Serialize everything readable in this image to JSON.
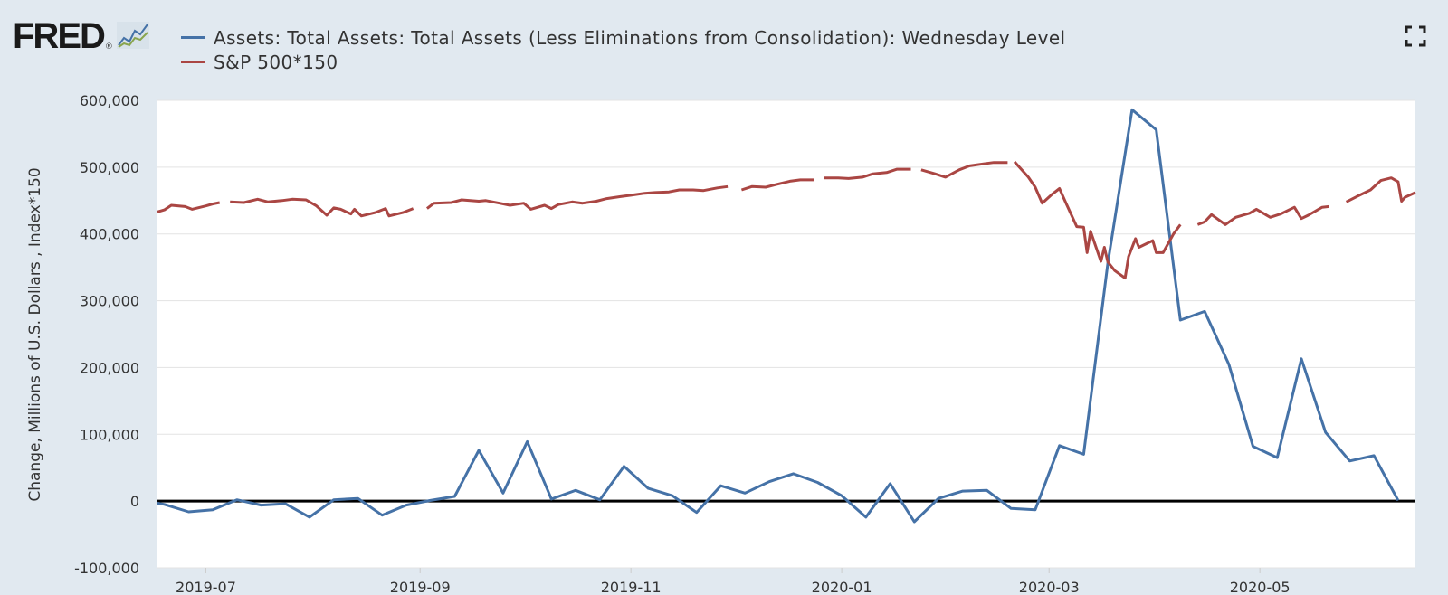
{
  "logo": {
    "text": "FRED",
    "registered": "®"
  },
  "chart_data": {
    "type": "line",
    "title": "",
    "xlabel": "",
    "ylabel": "Change, Millions of U.S. Dollars , Index*150",
    "ylim": [
      -100000,
      600000
    ],
    "y_ticks": [
      -100000,
      0,
      100000,
      200000,
      300000,
      400000,
      500000,
      600000
    ],
    "y_tick_labels": [
      "-100,000",
      "0",
      "100,000",
      "200,000",
      "300,000",
      "400,000",
      "500,000",
      "600,000"
    ],
    "xlim": [
      "2019-06-17",
      "2020-06-15"
    ],
    "x_ticks": [
      "2019-07-01",
      "2019-09-01",
      "2019-11-01",
      "2020-01-01",
      "2020-03-01",
      "2020-05-01"
    ],
    "x_tick_labels": [
      "2019-07",
      "2019-09",
      "2019-11",
      "2020-01",
      "2020-03",
      "2020-05"
    ],
    "grid": true,
    "legend_placement": "top-left",
    "zero_line": true,
    "series": [
      {
        "name": "Assets: Total Assets: Total Assets (Less Eliminations from Consolidation): Wednesday Level",
        "color": "#4572a7",
        "points": [
          [
            "2019-06-17",
            -3000
          ],
          [
            "2019-06-19",
            -5000
          ],
          [
            "2019-06-26",
            -16000
          ],
          [
            "2019-07-03",
            -13000
          ],
          [
            "2019-07-10",
            2000
          ],
          [
            "2019-07-17",
            -6000
          ],
          [
            "2019-07-24",
            -4000
          ],
          [
            "2019-07-31",
            -24000
          ],
          [
            "2019-08-07",
            2000
          ],
          [
            "2019-08-14",
            4000
          ],
          [
            "2019-08-21",
            -21000
          ],
          [
            "2019-08-28",
            -6000
          ],
          [
            "2019-09-04",
            1000
          ],
          [
            "2019-09-11",
            7000
          ],
          [
            "2019-09-18",
            76000
          ],
          [
            "2019-09-25",
            12000
          ],
          [
            "2019-10-02",
            89000
          ],
          [
            "2019-10-09",
            3000
          ],
          [
            "2019-10-16",
            16000
          ],
          [
            "2019-10-23",
            2000
          ],
          [
            "2019-10-30",
            52000
          ],
          [
            "2019-11-06",
            19000
          ],
          [
            "2019-11-13",
            8000
          ],
          [
            "2019-11-20",
            -17000
          ],
          [
            "2019-11-27",
            23000
          ],
          [
            "2019-12-04",
            12000
          ],
          [
            "2019-12-11",
            29000
          ],
          [
            "2019-12-18",
            41000
          ],
          [
            "2019-12-25",
            28000
          ],
          [
            "2020-01-01",
            8000
          ],
          [
            "2020-01-08",
            -24000
          ],
          [
            "2020-01-15",
            26000
          ],
          [
            "2020-01-22",
            -31000
          ],
          [
            "2020-01-29",
            4000
          ],
          [
            "2020-02-05",
            15000
          ],
          [
            "2020-02-12",
            16000
          ],
          [
            "2020-02-19",
            -11000
          ],
          [
            "2020-02-26",
            -13000
          ],
          [
            "2020-03-04",
            83000
          ],
          [
            "2020-03-11",
            70000
          ],
          [
            "2020-03-18",
            356000
          ],
          [
            "2020-03-25",
            586000
          ],
          [
            "2020-04-01",
            556000
          ],
          [
            "2020-04-08",
            271000
          ],
          [
            "2020-04-15",
            284000
          ],
          [
            "2020-04-22",
            205000
          ],
          [
            "2020-04-29",
            82000
          ],
          [
            "2020-05-06",
            65000
          ],
          [
            "2020-05-13",
            213000
          ],
          [
            "2020-05-20",
            103000
          ],
          [
            "2020-05-27",
            60000
          ],
          [
            "2020-06-03",
            68000
          ],
          [
            "2020-06-10",
            1000
          ]
        ]
      },
      {
        "name": "S&P 500*150",
        "color": "#aa4643",
        "segments": [
          [
            [
              "2019-06-17",
              433000
            ],
            [
              "2019-06-19",
              436000
            ],
            [
              "2019-06-21",
              443000
            ],
            [
              "2019-06-25",
              441000
            ],
            [
              "2019-06-27",
              437000
            ],
            [
              "2019-07-01",
              442000
            ],
            [
              "2019-07-03",
              445000
            ],
            [
              "2019-07-05",
              447000
            ]
          ],
          [
            [
              "2019-07-08",
              448000
            ],
            [
              "2019-07-12",
              447000
            ],
            [
              "2019-07-16",
              452000
            ],
            [
              "2019-07-19",
              448000
            ],
            [
              "2019-07-23",
              450000
            ],
            [
              "2019-07-26",
              452000
            ],
            [
              "2019-07-30",
              451000
            ],
            [
              "2019-08-02",
              442000
            ],
            [
              "2019-08-05",
              428000
            ],
            [
              "2019-08-07",
              439000
            ],
            [
              "2019-08-09",
              437000
            ],
            [
              "2019-08-12",
              430000
            ],
            [
              "2019-08-13",
              437000
            ],
            [
              "2019-08-15",
              427000
            ],
            [
              "2019-08-19",
              432000
            ],
            [
              "2019-08-22",
              438000
            ],
            [
              "2019-08-23",
              427000
            ],
            [
              "2019-08-27",
              432000
            ],
            [
              "2019-08-30",
              438000
            ]
          ],
          [
            [
              "2019-09-03",
              438000
            ],
            [
              "2019-09-05",
              446000
            ],
            [
              "2019-09-10",
              447000
            ],
            [
              "2019-09-13",
              451000
            ],
            [
              "2019-09-18",
              449000
            ],
            [
              "2019-09-20",
              450000
            ],
            [
              "2019-09-24",
              446000
            ],
            [
              "2019-09-27",
              443000
            ],
            [
              "2019-10-01",
              446000
            ],
            [
              "2019-10-03",
              437000
            ],
            [
              "2019-10-07",
              443000
            ],
            [
              "2019-10-09",
              438000
            ],
            [
              "2019-10-11",
              444000
            ],
            [
              "2019-10-15",
              448000
            ],
            [
              "2019-10-18",
              446000
            ],
            [
              "2019-10-22",
              449000
            ],
            [
              "2019-10-25",
              453000
            ],
            [
              "2019-10-29",
              456000
            ],
            [
              "2019-11-01",
              458000
            ],
            [
              "2019-11-05",
              461000
            ],
            [
              "2019-11-08",
              462000
            ],
            [
              "2019-11-12",
              463000
            ],
            [
              "2019-11-15",
              466000
            ],
            [
              "2019-11-19",
              466000
            ],
            [
              "2019-11-22",
              465000
            ],
            [
              "2019-11-26",
              469000
            ],
            [
              "2019-11-29",
              471000
            ]
          ],
          [
            [
              "2019-12-03",
              466000
            ],
            [
              "2019-12-06",
              471000
            ],
            [
              "2019-12-10",
              470000
            ],
            [
              "2019-12-13",
              474000
            ],
            [
              "2019-12-17",
              479000
            ],
            [
              "2019-12-20",
              481000
            ],
            [
              "2019-12-24",
              481000
            ]
          ],
          [
            [
              "2019-12-27",
              484000
            ],
            [
              "2019-12-31",
              484000
            ],
            [
              "2020-01-03",
              483000
            ],
            [
              "2020-01-07",
              485000
            ],
            [
              "2020-01-10",
              490000
            ],
            [
              "2020-01-14",
              492000
            ],
            [
              "2020-01-17",
              497000
            ],
            [
              "2020-01-21",
              497000
            ]
          ],
          [
            [
              "2020-01-24",
              496000
            ],
            [
              "2020-01-28",
              490000
            ],
            [
              "2020-01-31",
              485000
            ],
            [
              "2020-02-04",
              496000
            ],
            [
              "2020-02-07",
              502000
            ],
            [
              "2020-02-11",
              505000
            ],
            [
              "2020-02-14",
              507000
            ],
            [
              "2020-02-18",
              507000
            ]
          ],
          [
            [
              "2020-02-20",
              508000
            ],
            [
              "2020-02-24",
              485000
            ],
            [
              "2020-02-26",
              470000
            ],
            [
              "2020-02-28",
              446000
            ],
            [
              "2020-03-02",
              460000
            ],
            [
              "2020-03-04",
              468000
            ],
            [
              "2020-03-06",
              445000
            ],
            [
              "2020-03-09",
              411000
            ],
            [
              "2020-03-11",
              410000
            ],
            [
              "2020-03-12",
              372000
            ],
            [
              "2020-03-13",
              404000
            ],
            [
              "2020-03-16",
              359000
            ],
            [
              "2020-03-17",
              380000
            ],
            [
              "2020-03-18",
              358000
            ],
            [
              "2020-03-20",
              345000
            ],
            [
              "2020-03-23",
              334000
            ],
            [
              "2020-03-24",
              366000
            ],
            [
              "2020-03-26",
              393000
            ],
            [
              "2020-03-27",
              380000
            ],
            [
              "2020-03-31",
              390000
            ],
            [
              "2020-04-01",
              372000
            ],
            [
              "2020-04-03",
              372000
            ],
            [
              "2020-04-06",
              400000
            ],
            [
              "2020-04-08",
              414000
            ]
          ],
          [
            [
              "2020-04-13",
              414000
            ],
            [
              "2020-04-15",
              418000
            ],
            [
              "2020-04-17",
              429000
            ],
            [
              "2020-04-21",
              414000
            ],
            [
              "2020-04-24",
              425000
            ],
            [
              "2020-04-28",
              431000
            ],
            [
              "2020-04-30",
              437000
            ],
            [
              "2020-05-04",
              425000
            ],
            [
              "2020-05-07",
              430000
            ],
            [
              "2020-05-11",
              440000
            ],
            [
              "2020-05-13",
              423000
            ],
            [
              "2020-05-15",
              428000
            ],
            [
              "2020-05-19",
              440000
            ],
            [
              "2020-05-21",
              441000
            ]
          ],
          [
            [
              "2020-05-26",
              448000
            ],
            [
              "2020-05-29",
              456000
            ],
            [
              "2020-06-02",
              466000
            ],
            [
              "2020-06-05",
              480000
            ],
            [
              "2020-06-08",
              484000
            ],
            [
              "2020-06-10",
              478000
            ],
            [
              "2020-06-11",
              449000
            ],
            [
              "2020-06-12",
              455000
            ],
            [
              "2020-06-15",
              462000
            ]
          ]
        ]
      }
    ]
  }
}
